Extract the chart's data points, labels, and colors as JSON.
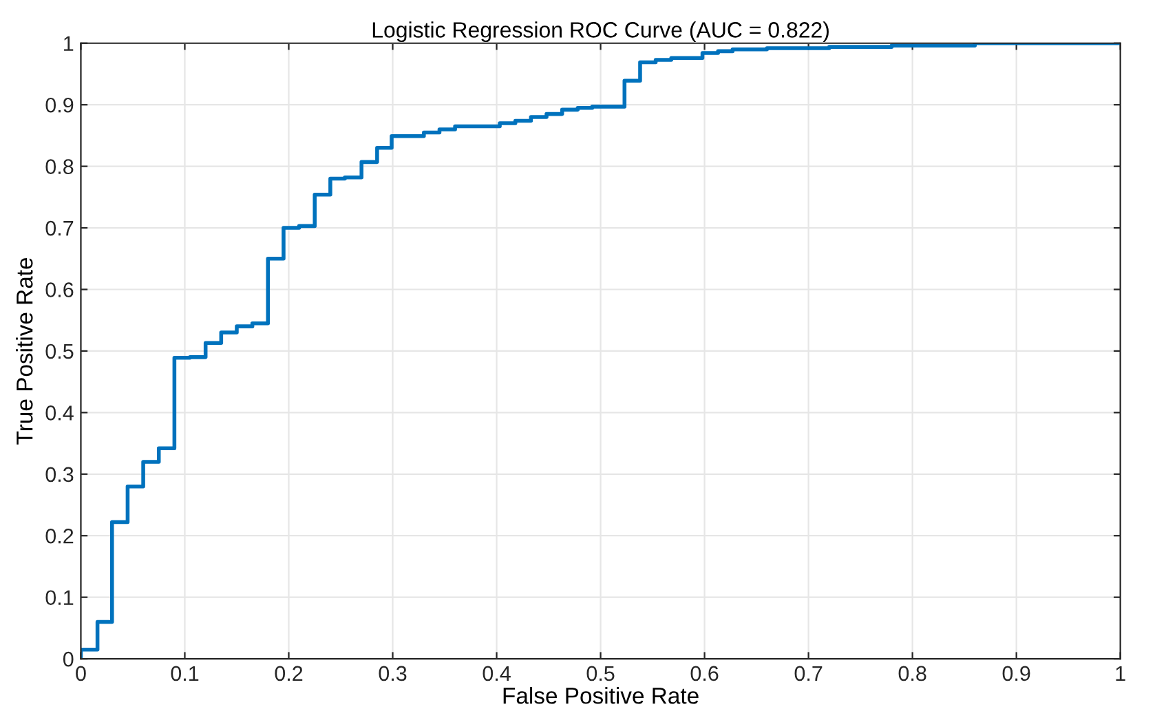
{
  "chart_data": {
    "type": "step",
    "title": "Logistic Regression ROC Curve (AUC = 0.822)",
    "xlabel": "False Positive Rate",
    "ylabel": "True Positive Rate",
    "series": [
      {
        "color": "#0072bd",
        "x": [
          0,
          0,
          0.016,
          0.03,
          0.045,
          0.06,
          0.075,
          0.09,
          0.105,
          0.12,
          0.135,
          0.15,
          0.165,
          0.18,
          0.195,
          0.21,
          0.225,
          0.24,
          0.254,
          0.27,
          0.285,
          0.299,
          0.33,
          0.345,
          0.36,
          0.403,
          0.418,
          0.433,
          0.448,
          0.463,
          0.478,
          0.492,
          0.523,
          0.538,
          0.553,
          0.568,
          0.598,
          0.613,
          0.627,
          0.66,
          0.72,
          0.78,
          0.86,
          1
        ],
        "values": [
          0,
          0.015,
          0.06,
          0.222,
          0.28,
          0.32,
          0.342,
          0.489,
          0.49,
          0.513,
          0.53,
          0.54,
          0.545,
          0.65,
          0.7,
          0.703,
          0.754,
          0.78,
          0.782,
          0.807,
          0.83,
          0.849,
          0.855,
          0.86,
          0.865,
          0.87,
          0.874,
          0.88,
          0.885,
          0.892,
          0.895,
          0.897,
          0.939,
          0.969,
          0.973,
          0.976,
          0.984,
          0.987,
          0.99,
          0.992,
          0.994,
          0.996,
          1,
          1
        ]
      }
    ],
    "xlim": [
      0,
      1
    ],
    "ylim": [
      0,
      1
    ],
    "xticks": [
      0,
      0.1,
      0.2,
      0.3,
      0.4,
      0.5,
      0.6,
      0.7,
      0.8,
      0.9,
      1
    ],
    "yticks": [
      0,
      0.1,
      0.2,
      0.3,
      0.4,
      0.5,
      0.6,
      0.7,
      0.8,
      0.9,
      1
    ],
    "grid": true
  }
}
